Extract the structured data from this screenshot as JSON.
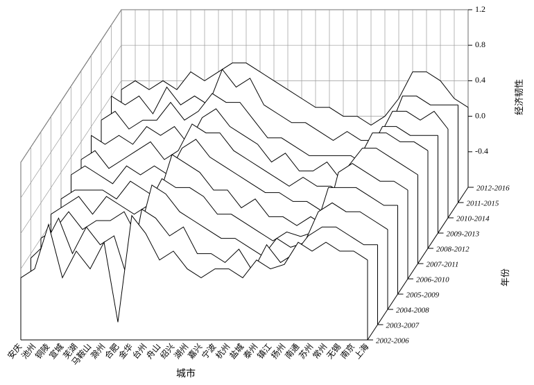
{
  "chart_data": {
    "type": "waterfall",
    "x_label": "城市",
    "y_label": "年份",
    "z_label": "经济韧性",
    "categories": [
      "安庆",
      "池州",
      "铜陵",
      "宣城",
      "芜湖",
      "马鞍山",
      "滁州",
      "合肥",
      "金华",
      "台州",
      "舟山",
      "绍兴",
      "湖州",
      "嘉兴",
      "宁波",
      "杭州",
      "盐城",
      "泰州",
      "镇江",
      "扬州",
      "南通",
      "苏州",
      "常州",
      "无锡",
      "南京",
      "上海"
    ],
    "zlim": [
      -0.8,
      1.2
    ],
    "zticks": [
      -0.4,
      {
        "value": 0,
        "label": "0.0"
      },
      0.4,
      0.8,
      1.2
    ],
    "grid": true,
    "color": "#000000",
    "fill": "#ffffff",
    "series": [
      {
        "name": "2002-2006",
        "values": [
          -0.1,
          0.0,
          0.5,
          -0.1,
          0.2,
          0.0,
          0.3,
          -0.6,
          0.6,
          0.4,
          0.1,
          0.2,
          0.0,
          -0.1,
          0.0,
          0.0,
          -0.1,
          0.1,
          0.0,
          0.05,
          0.3,
          0.2,
          0.3,
          0.2,
          0.2,
          0.1
        ]
      },
      {
        "name": "2003-2007",
        "values": [
          -0.05,
          0.1,
          0.4,
          0.0,
          0.3,
          0.1,
          0.2,
          -0.3,
          0.5,
          0.4,
          0.2,
          0.3,
          0.0,
          0.0,
          -0.1,
          0.05,
          -0.2,
          0.1,
          -0.1,
          0.0,
          0.2,
          0.3,
          0.3,
          0.2,
          0.1,
          0.1
        ]
      },
      {
        "name": "2004-2008",
        "values": [
          0.0,
          0.1,
          0.3,
          0.1,
          0.2,
          0.2,
          0.3,
          0.0,
          0.6,
          0.5,
          0.3,
          0.2,
          0.1,
          0.0,
          0.0,
          -0.1,
          -0.2,
          0.0,
          -0.1,
          -0.05,
          0.3,
          0.4,
          0.3,
          0.3,
          0.2,
          0.1
        ]
      },
      {
        "name": "2005-2009",
        "values": [
          0.1,
          0.2,
          0.3,
          0.1,
          0.3,
          0.2,
          0.1,
          0.2,
          0.5,
          0.4,
          0.4,
          0.3,
          0.1,
          0.1,
          0.0,
          -0.1,
          -0.2,
          -0.1,
          -0.15,
          -0.1,
          0.4,
          0.4,
          0.4,
          0.3,
          0.2,
          0.2
        ]
      },
      {
        "name": "2006-2010",
        "values": [
          0.1,
          0.2,
          0.2,
          0.2,
          0.1,
          0.3,
          0.2,
          0.1,
          0.6,
          0.5,
          0.4,
          0.2,
          0.2,
          0.0,
          0.1,
          -0.1,
          -0.1,
          -0.2,
          -0.1,
          -0.2,
          0.4,
          0.5,
          0.4,
          0.3,
          0.3,
          0.2
        ]
      },
      {
        "name": "2007-2011",
        "values": [
          0.2,
          0.3,
          0.2,
          0.1,
          0.3,
          0.2,
          0.3,
          0.2,
          0.5,
          0.6,
          0.4,
          0.3,
          0.2,
          0.1,
          0.0,
          0.0,
          -0.1,
          -0.1,
          -0.2,
          -0.2,
          0.3,
          0.5,
          0.5,
          0.4,
          0.3,
          0.2
        ]
      },
      {
        "name": "2008-2012",
        "values": [
          0.2,
          0.3,
          0.1,
          0.2,
          0.3,
          0.4,
          0.2,
          0.3,
          0.6,
          0.5,
          0.5,
          0.3,
          0.2,
          0.1,
          0.0,
          -0.1,
          0.0,
          -0.1,
          -0.1,
          -0.2,
          0.2,
          0.5,
          0.5,
          0.4,
          0.4,
          0.3
        ]
      },
      {
        "name": "2009-2013",
        "values": [
          0.3,
          0.2,
          0.3,
          0.2,
          0.4,
          0.3,
          0.4,
          0.2,
          0.5,
          0.6,
          0.4,
          0.3,
          0.2,
          0.0,
          0.1,
          -0.1,
          -0.1,
          0.0,
          -0.2,
          -0.1,
          0.1,
          0.4,
          0.4,
          0.3,
          0.3,
          0.3
        ]
      },
      {
        "name": "2010-2014",
        "values": [
          0.3,
          0.4,
          0.2,
          0.3,
          0.3,
          0.5,
          0.3,
          0.4,
          0.6,
          0.5,
          0.5,
          0.3,
          0.1,
          0.1,
          0.0,
          -0.1,
          -0.1,
          -0.1,
          -0.1,
          -0.2,
          0.1,
          0.4,
          0.4,
          0.3,
          0.4,
          0.2
        ]
      },
      {
        "name": "2011-2015",
        "values": [
          0.4,
          0.3,
          0.4,
          0.2,
          0.5,
          0.3,
          0.4,
          0.3,
          0.7,
          0.5,
          0.6,
          0.3,
          0.2,
          0.1,
          0.1,
          0.0,
          -0.1,
          0.0,
          -0.1,
          -0.1,
          0.0,
          0.4,
          0.4,
          0.3,
          0.3,
          0.3
        ]
      },
      {
        "name": "2012-2016",
        "values": [
          0.3,
          0.4,
          0.3,
          0.4,
          0.3,
          0.5,
          0.4,
          0.5,
          0.6,
          0.6,
          0.5,
          0.4,
          0.3,
          0.2,
          0.1,
          0.1,
          0.0,
          0.0,
          -0.1,
          0.0,
          0.2,
          0.5,
          0.5,
          0.4,
          0.2,
          0.1
        ]
      }
    ]
  }
}
